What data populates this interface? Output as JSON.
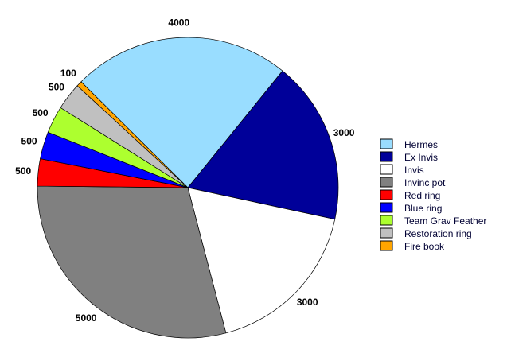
{
  "chart_data": {
    "type": "pie",
    "title": "",
    "categories": [
      "Hermes",
      "Ex Invis",
      "Invis",
      "Invinc pot",
      "Red ring",
      "Blue ring",
      "Team Grav Feather",
      "Restoration ring",
      "Fire book"
    ],
    "values": [
      4000,
      3000,
      3000,
      5000,
      500,
      500,
      500,
      500,
      100
    ],
    "data_labels": [
      "4000",
      "3000",
      "3000",
      "5000",
      "500",
      "500",
      "500",
      "500",
      "100"
    ],
    "colors": [
      "#99DDFF",
      "#000099",
      "#FFFFFF",
      "#808080",
      "#FF0000",
      "#0000FF",
      "#ADFF2F",
      "#C0C0C0",
      "#FFA500"
    ],
    "direction": "clockwise",
    "legend_placement": "right"
  }
}
